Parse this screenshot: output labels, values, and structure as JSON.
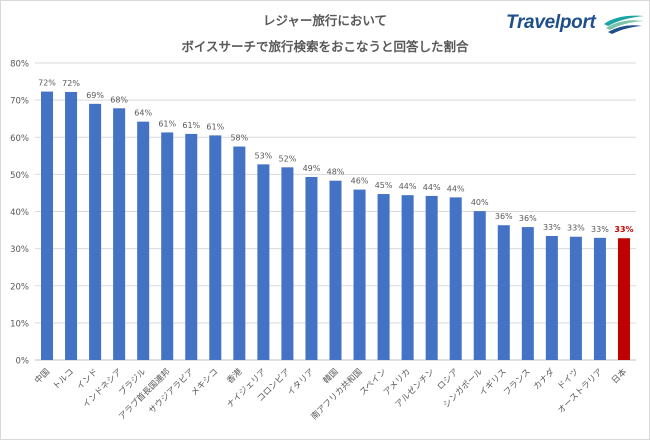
{
  "header": {
    "title_line1": "レジャー旅行において",
    "title_line2": "ボイスサーチで旅行検索をおこなうと回答した割合",
    "brand": "Travelport"
  },
  "colors": {
    "bar": "#4472c4",
    "highlight": "#c00000",
    "grid": "#d9d9d9",
    "text": "#595959"
  },
  "chart_data": {
    "type": "bar",
    "title": "レジャー旅行において ボイスサーチで旅行検索をおこなうと回答した割合",
    "categories": [
      "中国",
      "トルコ",
      "インド",
      "インドネシア",
      "ブラジル",
      "アラブ首長国連邦",
      "サウジアラビア",
      "メキシコ",
      "香港",
      "ナイジェリア",
      "コロンビア",
      "イタリア",
      "韓国",
      "南アフリカ共和国",
      "スペイン",
      "アメリカ",
      "アルゼンチン",
      "ロシア",
      "シンガポール",
      "イギリス",
      "フランス",
      "カナダ",
      "ドイツ",
      "オーストラリア",
      "日本"
    ],
    "values": [
      72.3,
      72.2,
      69.0,
      67.8,
      64.2,
      61.3,
      60.9,
      60.5,
      57.5,
      52.7,
      51.9,
      49.3,
      48.3,
      45.9,
      44.7,
      44.4,
      44.2,
      43.8,
      40.1,
      36.3,
      35.8,
      33.4,
      33.2,
      32.9,
      32.8
    ],
    "labels": [
      "72%",
      "72%",
      "69%",
      "68%",
      "64%",
      "61%",
      "61%",
      "61%",
      "58%",
      "53%",
      "52%",
      "49%",
      "48%",
      "46%",
      "45%",
      "44%",
      "44%",
      "44%",
      "40%",
      "36%",
      "36%",
      "33%",
      "33%",
      "33%",
      "33%"
    ],
    "highlight_index": 24,
    "yticks": [
      "0%",
      "10%",
      "20%",
      "30%",
      "40%",
      "50%",
      "60%",
      "70%",
      "80%"
    ],
    "ylim": [
      0,
      80
    ],
    "grid": true,
    "legend": "none"
  }
}
